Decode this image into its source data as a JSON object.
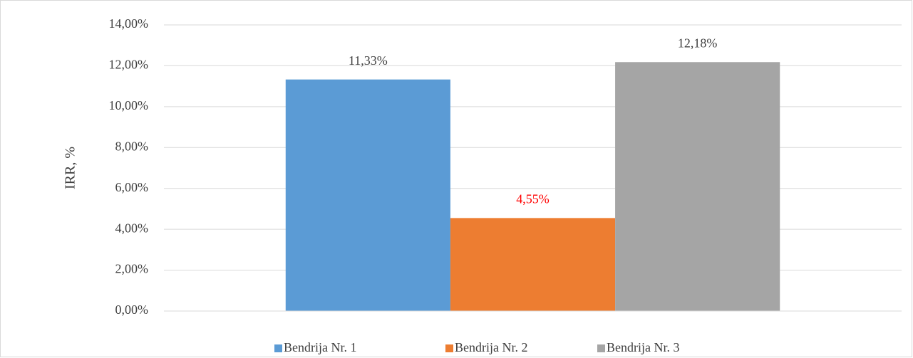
{
  "chart_data": {
    "type": "bar",
    "y_axis_label": "IRR, %",
    "categories": [
      null
    ],
    "series": [
      {
        "name": "Bendrija Nr. 1",
        "color": "#5b9bd5",
        "label_color": "#404040",
        "values": [
          11.33
        ],
        "value_labels": [
          "11,33%"
        ]
      },
      {
        "name": "Bendrija Nr. 2",
        "color": "#ed7d31",
        "label_color": "#ff0000",
        "values": [
          4.55
        ],
        "value_labels": [
          "4,55%"
        ]
      },
      {
        "name": "Bendrija Nr. 3",
        "color": "#a5a5a5",
        "label_color": "#404040",
        "values": [
          12.18
        ],
        "value_labels": [
          "12,18%"
        ]
      }
    ],
    "ylim": [
      0,
      14
    ],
    "yticks": [
      {
        "value": 0,
        "label": "0,00%"
      },
      {
        "value": 2,
        "label": "2,00%"
      },
      {
        "value": 4,
        "label": "4,00%"
      },
      {
        "value": 6,
        "label": "6,00%"
      },
      {
        "value": 8,
        "label": "8,00%"
      },
      {
        "value": 10,
        "label": "10,00%"
      },
      {
        "value": 12,
        "label": "12,00%"
      },
      {
        "value": 14,
        "label": "14,00%"
      }
    ],
    "grid": true,
    "legend": "bottom"
  }
}
